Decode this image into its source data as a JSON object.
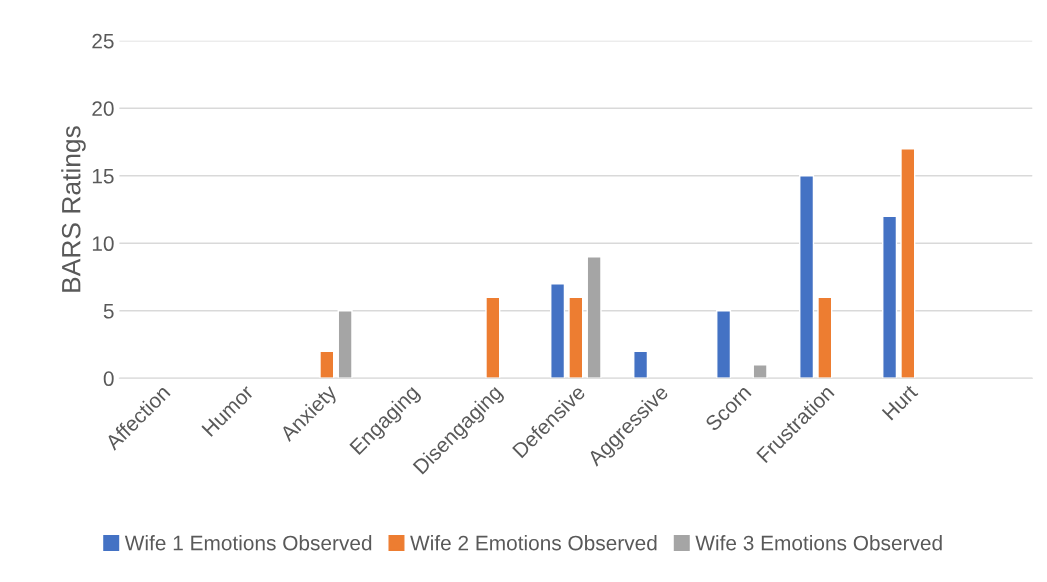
{
  "chart_data": {
    "type": "bar",
    "ylabel": "BARS Ratings",
    "categories": [
      "Affection",
      "Humor",
      "Anxiety",
      "Engaging",
      "Disengaging",
      "Defensive",
      "Aggressive",
      "Scorn",
      "Frustration",
      "Hurt",
      null
    ],
    "series": [
      {
        "name": "Wife 1 Emotions Observed",
        "color": "#4472c4",
        "values": [
          null,
          null,
          null,
          null,
          null,
          7,
          2,
          5,
          15,
          12,
          null
        ]
      },
      {
        "name": "Wife 2 Emotions Observed",
        "color": "#ed7d31",
        "values": [
          null,
          null,
          2,
          null,
          6,
          6,
          null,
          null,
          6,
          17,
          null
        ]
      },
      {
        "name": "Wife 3 Emotions Observed",
        "color": "#a5a5a5",
        "values": [
          null,
          null,
          5,
          null,
          null,
          9,
          null,
          1,
          null,
          null,
          null
        ]
      }
    ],
    "ylim": [
      0,
      25
    ],
    "yticks": [
      0,
      5,
      10,
      15,
      20,
      25
    ],
    "grid": "y",
    "legend": "bottom"
  }
}
